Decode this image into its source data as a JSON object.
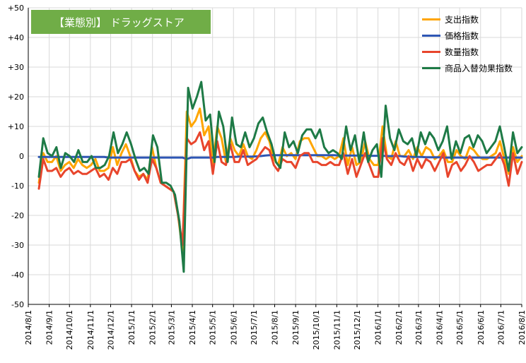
{
  "chart_data": {
    "type": "line",
    "title": "【業態別】 ドラッグストア",
    "xlabel": "",
    "ylabel": "",
    "ylim": [
      -50,
      50
    ],
    "ytick_labels": [
      "+50",
      "+40",
      "+30",
      "+20",
      "+10",
      "0",
      "-10",
      "-20",
      "-30",
      "-40",
      "-50"
    ],
    "grid": true,
    "legend_position": "top-right",
    "x_tick_labels": [
      "2014/8/1",
      "2014/9/1",
      "2014/10/1",
      "2014/11/1",
      "2014/12/1",
      "2015/1/1",
      "2015/2/1",
      "2015/3/1",
      "2015/4/1",
      "2015/5/1",
      "2015/6/1",
      "2015/7/1",
      "2015/8/1",
      "2015/9/1",
      "2015/10/1",
      "2015/11/1",
      "2015/12/1",
      "2016/1/1",
      "2016/2/1",
      "2016/3/1",
      "2016/4/1",
      "2016/5/1",
      "2016/6/1",
      "2016/7/1",
      "2016/8/1"
    ],
    "x_start": "2014/8/1",
    "x_end": "2016/8/1",
    "series": [
      {
        "name": "支出指数",
        "color": "#ffa500",
        "values": [
          -9,
          1,
          -2,
          -2,
          0,
          -5,
          -3,
          -2,
          -4,
          -1,
          -3,
          -4,
          -3,
          -1,
          -5,
          -5,
          -4,
          3,
          -3,
          1,
          4,
          0,
          -5,
          -7,
          -6,
          -8,
          3,
          -4,
          -9,
          -10,
          -11,
          -12,
          -20,
          -32,
          15,
          10,
          12,
          16,
          7,
          10,
          -3,
          10,
          6,
          -2,
          6,
          2,
          0,
          4,
          0,
          -1,
          2,
          6,
          8,
          5,
          -1,
          -3,
          3,
          0,
          1,
          -1,
          5,
          6,
          6,
          3,
          0,
          0,
          -1,
          0,
          -1,
          0,
          6,
          -3,
          3,
          -3,
          -2,
          5,
          -1,
          -3,
          -3,
          10,
          0,
          -1,
          5,
          0,
          0,
          2,
          -1,
          3,
          0,
          3,
          2,
          -1,
          0,
          2,
          -2,
          -2,
          2,
          0,
          -1,
          3,
          2,
          0,
          -1,
          -1,
          0,
          1,
          5,
          -1,
          -6,
          3,
          -2,
          0
        ]
      },
      {
        "name": "価格指数",
        "color": "#2e56b4",
        "values": [
          -0.3,
          -0.3,
          -0.3,
          -0.3,
          -0.3,
          -0.3,
          -0.3,
          -0.3,
          -0.3,
          -0.3,
          -0.3,
          -0.3,
          -0.3,
          -0.3,
          -0.3,
          -0.3,
          -0.5,
          -0.5,
          -0.5,
          -0.5,
          -0.5,
          -0.5,
          -0.5,
          -0.5,
          -0.5,
          -0.5,
          -0.5,
          -0.5,
          -0.5,
          -0.5,
          -0.5,
          -0.5,
          -0.5,
          -0.5,
          -1,
          -0.5,
          -0.5,
          -0.5,
          -0.5,
          -0.5,
          -0.5,
          -0.3,
          -0.3,
          -0.3,
          -0.3,
          -0.3,
          -0.2,
          -0.2,
          -0.2,
          -0.2,
          -0.1,
          0,
          0.2,
          0.3,
          0.3,
          0.3,
          0.3,
          0.3,
          0.3,
          0.3,
          0.3,
          0.3,
          0.3,
          0.3,
          0.3,
          0.3,
          0.3,
          0.3,
          0.3,
          0.2,
          0.2,
          0.2,
          0.2,
          0.2,
          0.2,
          0.2,
          0.1,
          0.1,
          0.1,
          0.1,
          0,
          0,
          0,
          0,
          -0.2,
          -0.2,
          -0.3,
          -0.3,
          -0.3,
          -0.4,
          -0.4,
          -0.4,
          -0.4,
          -0.5,
          -0.5,
          -0.5,
          -0.5,
          -0.5,
          -0.5,
          -0.5,
          -0.5,
          -0.5,
          -0.5,
          -0.5,
          -0.5,
          -0.5,
          -0.5,
          -0.5,
          -0.5,
          -0.5,
          -0.5,
          -0.5
        ]
      },
      {
        "name": "数量指数",
        "color": "#e8452c",
        "values": [
          -11,
          -1,
          -5,
          -5,
          -4,
          -7,
          -5,
          -4,
          -6,
          -5,
          -6,
          -6,
          -5,
          -4,
          -7,
          -6,
          -8,
          -4,
          -6,
          -2,
          -2,
          -1,
          -5,
          -8,
          -6,
          -9,
          -1,
          -4,
          -9,
          -10,
          -11,
          -12,
          -20,
          -30,
          6,
          4,
          5,
          8,
          2,
          5,
          -6,
          5,
          -2,
          -3,
          4,
          -2,
          -2,
          2,
          -3,
          -2,
          -1,
          1,
          3,
          2,
          -3,
          -5,
          -1,
          -2,
          -2,
          -4,
          0,
          1,
          1,
          -2,
          -2,
          -3,
          -3,
          -2,
          -3,
          -3,
          1,
          -6,
          -1,
          -7,
          -3,
          1,
          -3,
          -7,
          -7,
          6,
          -1,
          -3,
          1,
          -2,
          -3,
          0,
          -5,
          -1,
          -4,
          -1,
          -2,
          -5,
          -2,
          1,
          -7,
          -3,
          -2,
          -5,
          -3,
          0,
          -2,
          -5,
          -4,
          -3,
          -3,
          -1,
          1,
          -3,
          -10,
          1,
          -6,
          -2
        ]
      },
      {
        "name": "商品入替効果指数",
        "color": "#1e7a46",
        "values": [
          -7,
          6,
          1,
          0,
          3,
          -4,
          1,
          0,
          -2,
          2,
          -2,
          -2,
          0,
          -4,
          -4,
          -3,
          0,
          8,
          1,
          4,
          8,
          4,
          -1,
          -5,
          -4,
          -6,
          7,
          3,
          -9,
          -9,
          -10,
          -13,
          -22,
          -39,
          23,
          16,
          20,
          25,
          12,
          14,
          -2,
          15,
          10,
          -2,
          13,
          4,
          3,
          8,
          3,
          6,
          11,
          13,
          8,
          4,
          -2,
          -4,
          8,
          3,
          5,
          1,
          7,
          9,
          9,
          6,
          9,
          3,
          1,
          2,
          1,
          -1,
          10,
          2,
          7,
          -2,
          8,
          -2,
          2,
          4,
          -7,
          17,
          6,
          2,
          9,
          5,
          4,
          6,
          0,
          8,
          4,
          8,
          6,
          2,
          5,
          10,
          -1,
          5,
          1,
          6,
          7,
          3,
          7,
          5,
          1,
          3,
          5,
          10,
          3,
          -5,
          8,
          1,
          3
        ]
      }
    ]
  }
}
